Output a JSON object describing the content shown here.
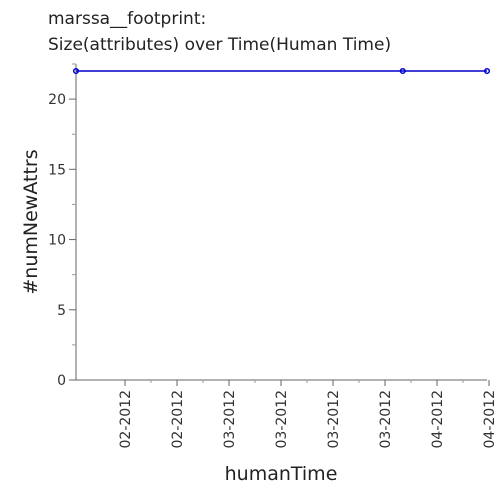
{
  "chart_data": {
    "type": "line",
    "title_lines": [
      "marssa__footprint:",
      "Size(attributes) over Time(Human Time)"
    ],
    "xlabel": "humanTime",
    "ylabel": "#numNewAttrs",
    "x_tick_labels": [
      "02-2012",
      "02-2012",
      "03-2012",
      "03-2012",
      "03-2012",
      "03-2012",
      "04-2012",
      "04-2012"
    ],
    "x_tick_positions": [
      1,
      2,
      3,
      4,
      5,
      6,
      7,
      8
    ],
    "xlim": [
      0,
      8.05
    ],
    "ylim": [
      0,
      22.5
    ],
    "y_ticks": [
      0,
      5,
      10,
      15,
      20
    ],
    "y_minor_step": 2.5,
    "grid": false,
    "series": [
      {
        "color": "#0000cc",
        "points": [
          {
            "x": 0,
            "y": 22
          },
          {
            "x": 6.4,
            "y": 22
          },
          {
            "x": 8.05,
            "y": 22
          }
        ]
      }
    ]
  }
}
